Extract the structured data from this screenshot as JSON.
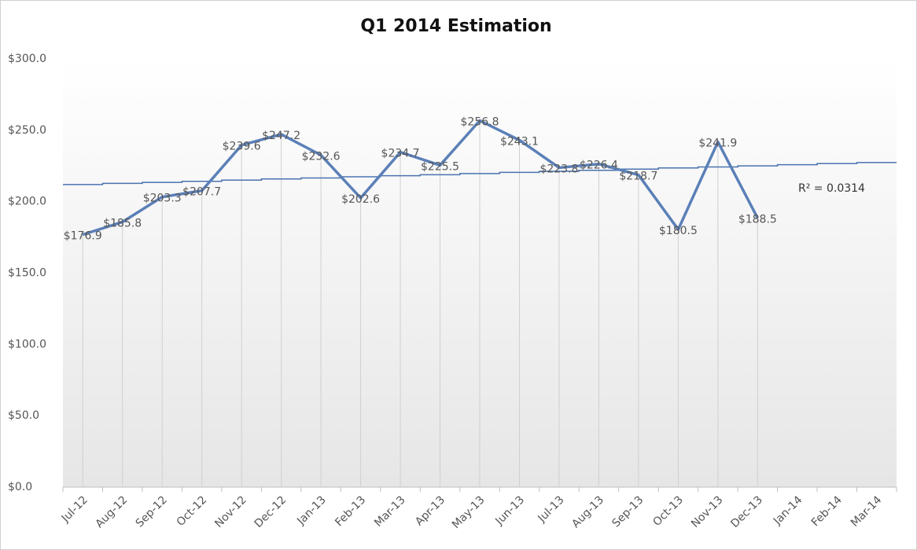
{
  "chart_data": {
    "type": "line",
    "title": "Q1 2014 Estimation",
    "categories": [
      "Jul-12",
      "Aug-12",
      "Sep-12",
      "Oct-12",
      "Nov-12",
      "Dec-12",
      "Jan-13",
      "Feb-13",
      "Mar-13",
      "Apr-13",
      "May-13",
      "Jun-13",
      "Jul-13",
      "Aug-13",
      "Sep-13",
      "Oct-13",
      "Nov-13",
      "Dec-13",
      "Jan-14",
      "Feb-14",
      "Mar-14"
    ],
    "values": [
      176.9,
      185.8,
      203.3,
      207.7,
      239.6,
      247.2,
      232.6,
      202.6,
      234.7,
      225.5,
      256.8,
      243.1,
      223.8,
      226.4,
      218.7,
      180.5,
      241.9,
      188.5,
      null,
      null,
      null
    ],
    "value_labels": [
      "$176.9",
      "$185.8",
      "$203.3",
      "$207.7",
      "$239.6",
      "$247.2",
      "$232.6",
      "$202.6",
      "$234.7",
      "$225.5",
      "$256.8",
      "$243.1",
      "$223.8",
      "$226.4",
      "$218.7",
      "$180.5",
      "$241.9",
      "$188.5",
      null,
      null,
      null
    ],
    "color": "#5b80b8",
    "trendline": {
      "values": [
        212.0,
        212.8,
        213.5,
        214.3,
        215.1,
        215.9,
        216.6,
        217.4,
        218.2,
        218.9,
        219.7,
        220.5,
        221.3,
        222.0,
        222.8,
        223.6,
        224.3,
        225.1,
        225.9,
        226.7,
        227.4
      ],
      "color": "#4a72b0",
      "label": "R² = 0.0314"
    },
    "ylim": [
      0,
      300
    ],
    "yticks": [
      {
        "value": 0,
        "label": "$0.0"
      },
      {
        "value": 50,
        "label": "$50.0"
      },
      {
        "value": 100,
        "label": "$100.0"
      },
      {
        "value": 150,
        "label": "$150.0"
      },
      {
        "value": 200,
        "label": "$200.0"
      },
      {
        "value": 250,
        "label": "$250.0"
      },
      {
        "value": 300,
        "label": "$300.0"
      }
    ],
    "drop_lines": true
  }
}
